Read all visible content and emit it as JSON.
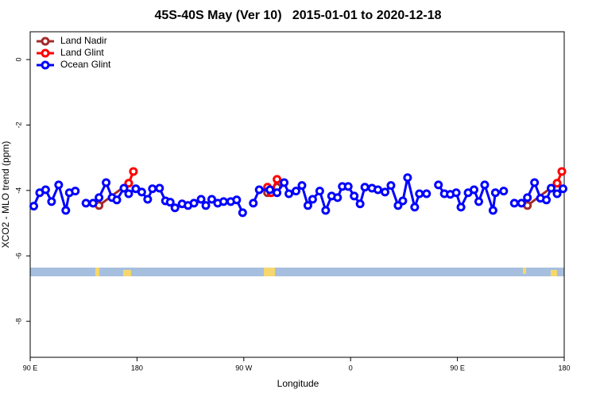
{
  "chart_data": {
    "type": "line",
    "title": "45S-40S May (Ver 10)   2015-01-01 to 2020-12-18",
    "x_label": "Longitude",
    "y_label": "XCO2 - MLO trend (ppm)",
    "xlim": [
      90,
      540
    ],
    "ylim": [
      -9.1,
      0.85
    ],
    "xticks": [
      {
        "value": 90,
        "label": "90 E"
      },
      180,
      {
        "value": 270,
        "label": "90 W"
      },
      {
        "value": 360,
        "label": "0"
      },
      {
        "value": 450,
        "label": "90 E"
      },
      {
        "value": 540,
        "label": "180"
      }
    ],
    "yticks": [
      0,
      -2,
      -4,
      -6,
      -8
    ],
    "legend": "top-left",
    "series": [
      {
        "name": "Land Nadir",
        "color": "#a52a2a",
        "x": [
          148,
          173,
          230,
          290,
          298,
          400,
          509,
          534
        ],
        "values": [
          -4.46,
          -3.78,
          null,
          -4.07,
          -3.9,
          null,
          -4.46,
          -3.78
        ]
      },
      {
        "name": "Land Glint",
        "color": "#ff0000",
        "x": [
          173,
          177,
          230,
          290,
          293,
          298,
          400,
          534,
          538
        ],
        "values": [
          -3.78,
          -3.42,
          null,
          -3.9,
          -4.07,
          -3.66,
          null,
          -3.78,
          -3.42
        ]
      },
      {
        "name": "Ocean Glint",
        "color": "#0000ff",
        "x": [
          93,
          98,
          103,
          108,
          114,
          120,
          123,
          128,
          132,
          137,
          143,
          148,
          154,
          159,
          163,
          169,
          173,
          179,
          184,
          189,
          193,
          199,
          204,
          208,
          212,
          218,
          223,
          228,
          234,
          238,
          243,
          248,
          253,
          259,
          264,
          269,
          274,
          278,
          283,
          292,
          298,
          304,
          308,
          314,
          319,
          324,
          328,
          334,
          339,
          344,
          349,
          353,
          358,
          363,
          368,
          372,
          378,
          383,
          389,
          394,
          400,
          404,
          408,
          414,
          418,
          424,
          429,
          434,
          439,
          444,
          449,
          453,
          459,
          464,
          468,
          473,
          480,
          482,
          489,
          494,
          498,
          504,
          509,
          515,
          520,
          525,
          529,
          534,
          539
        ],
        "values": [
          -4.48,
          -4.07,
          -3.98,
          -4.34,
          -3.83,
          -4.61,
          -4.07,
          -4.02,
          null,
          -4.39,
          -4.39,
          -4.22,
          -3.76,
          -4.22,
          -4.29,
          -3.93,
          -4.1,
          -3.95,
          -4.05,
          -4.27,
          -3.95,
          -3.93,
          -4.32,
          -4.36,
          -4.53,
          -4.41,
          -4.46,
          -4.39,
          -4.27,
          -4.46,
          -4.27,
          -4.39,
          -4.34,
          -4.34,
          -4.29,
          -4.68,
          null,
          -4.39,
          -3.98,
          -3.98,
          -4.07,
          -3.76,
          -4.1,
          -4.02,
          -3.85,
          -4.46,
          -4.27,
          -4.02,
          -4.61,
          -4.17,
          -4.22,
          -3.88,
          -3.88,
          -4.17,
          -4.41,
          -3.9,
          -3.93,
          -3.98,
          -4.05,
          -3.85,
          -4.46,
          -4.32,
          -3.61,
          -4.51,
          -4.1,
          -4.1,
          null,
          -3.83,
          -4.1,
          -4.12,
          -4.07,
          -4.51,
          -4.07,
          -3.98,
          -4.34,
          -3.83,
          -4.61,
          -4.07,
          -4.02,
          null,
          -4.39,
          -4.39,
          -4.22,
          -3.76,
          -4.24,
          -4.29,
          -3.93,
          -4.1,
          -3.95
        ]
      }
    ]
  }
}
